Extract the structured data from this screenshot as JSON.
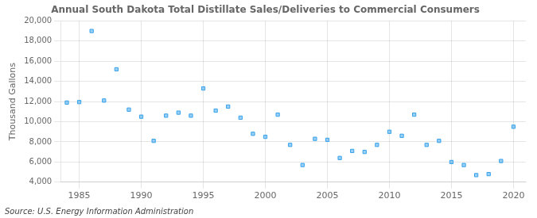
{
  "chart_data": {
    "type": "scatter",
    "title": "Annual South Dakota Total Distillate Sales/Deliveries to Commercial Consumers",
    "ylabel": "Thousand Gallons",
    "annotations": [
      "Source: U.S. Energy Information Administration"
    ],
    "x": [
      1984,
      1985,
      1986,
      1987,
      1988,
      1989,
      1990,
      1991,
      1992,
      1993,
      1994,
      1995,
      1996,
      1997,
      1998,
      1999,
      2000,
      2001,
      2002,
      2003,
      2004,
      2005,
      2006,
      2007,
      2008,
      2009,
      2010,
      2011,
      2012,
      2013,
      2014,
      2015,
      2016,
      2017,
      2018,
      2019,
      2020
    ],
    "values": [
      11900,
      11950,
      19000,
      12100,
      15200,
      11200,
      10500,
      8100,
      10600,
      10900,
      10600,
      13300,
      11100,
      11500,
      10400,
      8800,
      8500,
      10700,
      7700,
      5700,
      8300,
      8200,
      6400,
      7100,
      7000,
      7700,
      9000,
      8600,
      10700,
      7700,
      8100,
      6000,
      5700,
      4700,
      4800,
      6100,
      9500
    ],
    "marker": "square",
    "xlim": [
      1983.5,
      2021
    ],
    "xticks": [
      1985,
      1990,
      1995,
      2000,
      2005,
      2010,
      2015,
      2020
    ],
    "ylim": [
      4000,
      20000
    ],
    "yticks": [
      {
        "value": 4000,
        "label": "4,000"
      },
      {
        "value": 6000,
        "label": "6,000"
      },
      {
        "value": 8000,
        "label": "8,000"
      },
      {
        "value": 10000,
        "label": "10,000"
      },
      {
        "value": 12000,
        "label": "12,000"
      },
      {
        "value": 14000,
        "label": "14,000"
      },
      {
        "value": 16000,
        "label": "16,000"
      },
      {
        "value": 18000,
        "label": "18,000"
      },
      {
        "value": 20000,
        "label": "20,000"
      }
    ],
    "grid": true
  }
}
